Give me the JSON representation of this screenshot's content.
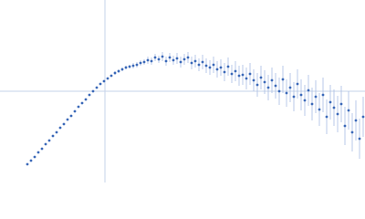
{
  "chart_data": {
    "type": "scatter",
    "xlim": [
      0,
      400
    ],
    "ylim": [
      0,
      200
    ],
    "crosshair": {
      "x": 115,
      "y": 100
    },
    "color": "#3a68b8",
    "error_color": "#a9bde3",
    "crosshair_color": "#c5d3ea",
    "x": [
      30,
      34,
      38,
      42,
      46,
      50,
      54,
      58,
      62,
      66,
      70,
      74,
      78,
      82,
      86,
      90,
      94,
      98,
      102,
      106,
      110,
      114,
      118,
      122,
      126,
      130,
      134,
      138,
      142,
      146,
      150,
      154,
      158,
      162,
      166,
      170,
      174,
      178,
      182,
      186,
      190,
      194,
      198,
      202,
      206,
      210,
      214,
      218,
      222,
      226,
      230,
      234,
      238,
      242,
      246,
      250,
      254,
      258,
      262,
      266,
      270,
      274,
      278,
      282,
      286,
      290,
      294,
      298,
      302,
      306,
      310,
      314,
      318,
      322,
      326,
      330,
      334,
      338,
      342,
      346,
      350,
      354,
      358,
      362,
      366,
      370,
      374,
      378,
      382,
      386,
      390,
      394,
      398
    ],
    "values": [
      20,
      24,
      28,
      33,
      37,
      42,
      46,
      51,
      55,
      60,
      64,
      69,
      73,
      78,
      83,
      87,
      91,
      96,
      100,
      104,
      108,
      111,
      114,
      117,
      120,
      122,
      124,
      126,
      127,
      128,
      129,
      131,
      132,
      134,
      133,
      137,
      135,
      138,
      133,
      137,
      134,
      136,
      132,
      135,
      137,
      131,
      133,
      129,
      132,
      128,
      126,
      129,
      124,
      126,
      121,
      127,
      119,
      122,
      117,
      118,
      114,
      119,
      112,
      107,
      115,
      110,
      104,
      112,
      106,
      100,
      113,
      98,
      104,
      94,
      108,
      96,
      90,
      101,
      86,
      94,
      80,
      96,
      72,
      88,
      82,
      75,
      86,
      62,
      79,
      55,
      68,
      48,
      72
    ],
    "errors": [
      1,
      1,
      1,
      1,
      1,
      1,
      1,
      1,
      1,
      1,
      1,
      1,
      1,
      1,
      1,
      1,
      1,
      1,
      1,
      1,
      1,
      1,
      1,
      1,
      2,
      2,
      2,
      2,
      2,
      3,
      3,
      3,
      3,
      4,
      4,
      4,
      4,
      5,
      5,
      5,
      5,
      6,
      6,
      6,
      6,
      7,
      7,
      7,
      8,
      8,
      8,
      9,
      9,
      9,
      10,
      10,
      10,
      11,
      11,
      11,
      12,
      12,
      12,
      13,
      13,
      13,
      14,
      14,
      14,
      15,
      15,
      15,
      16,
      16,
      16,
      17,
      17,
      17,
      18,
      18,
      18,
      19,
      19,
      19,
      20,
      20,
      20,
      21,
      21,
      21,
      22,
      22,
      22
    ]
  }
}
